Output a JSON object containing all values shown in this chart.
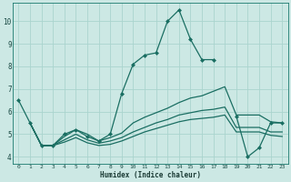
{
  "xlabel": "Humidex (Indice chaleur)",
  "xlim": [
    -0.5,
    23.5
  ],
  "ylim": [
    3.7,
    10.8
  ],
  "yticks": [
    4,
    5,
    6,
    7,
    8,
    9,
    10
  ],
  "xticks": [
    0,
    1,
    2,
    3,
    4,
    5,
    6,
    7,
    8,
    9,
    10,
    11,
    12,
    13,
    14,
    15,
    16,
    17,
    18,
    19,
    20,
    21,
    22,
    23
  ],
  "bg_color": "#cce8e4",
  "line_color": "#1a6e62",
  "grid_color": "#aad4ce",
  "line1": {
    "x": [
      0,
      1,
      2,
      3,
      4,
      5,
      6,
      7,
      8,
      9,
      10,
      11,
      12,
      13,
      14,
      15,
      16,
      17
    ],
    "y": [
      6.5,
      5.5,
      4.5,
      4.5,
      5.0,
      5.2,
      4.9,
      4.7,
      5.0,
      6.8,
      8.1,
      8.5,
      8.6,
      10.0,
      10.5,
      9.2,
      8.3,
      8.3
    ]
  },
  "line_upper": {
    "x": [
      1,
      2,
      3,
      4,
      5,
      6,
      7,
      8,
      9,
      10,
      11,
      12,
      13,
      14,
      15,
      16,
      17,
      18,
      19,
      20,
      21,
      22,
      23
    ],
    "y": [
      5.5,
      4.5,
      4.5,
      4.9,
      5.2,
      5.0,
      4.7,
      4.85,
      5.05,
      5.5,
      5.75,
      5.95,
      6.15,
      6.4,
      6.6,
      6.7,
      6.9,
      7.1,
      5.85,
      5.85,
      5.85,
      5.55,
      5.5
    ]
  },
  "line_mid": {
    "x": [
      1,
      2,
      3,
      4,
      5,
      6,
      7,
      8,
      9,
      10,
      11,
      12,
      13,
      14,
      15,
      16,
      17,
      18,
      19,
      20,
      21,
      22,
      23
    ],
    "y": [
      5.5,
      4.5,
      4.5,
      4.75,
      5.0,
      4.75,
      4.6,
      4.7,
      4.85,
      5.1,
      5.3,
      5.5,
      5.65,
      5.85,
      5.95,
      6.05,
      6.1,
      6.2,
      5.3,
      5.3,
      5.3,
      5.1,
      5.1
    ]
  },
  "line_low": {
    "x": [
      1,
      2,
      3,
      4,
      5,
      6,
      7,
      8,
      9,
      10,
      11,
      12,
      13,
      14,
      15,
      16,
      17,
      18,
      19,
      20,
      21,
      22,
      23
    ],
    "y": [
      5.5,
      4.5,
      4.5,
      4.65,
      4.85,
      4.62,
      4.5,
      4.55,
      4.7,
      4.9,
      5.1,
      5.25,
      5.4,
      5.55,
      5.65,
      5.7,
      5.75,
      5.85,
      5.1,
      5.1,
      5.1,
      4.95,
      4.9
    ]
  },
  "line2": {
    "x": [
      19,
      20,
      21,
      22,
      23
    ],
    "y": [
      5.8,
      4.0,
      4.4,
      5.5,
      5.5
    ]
  }
}
